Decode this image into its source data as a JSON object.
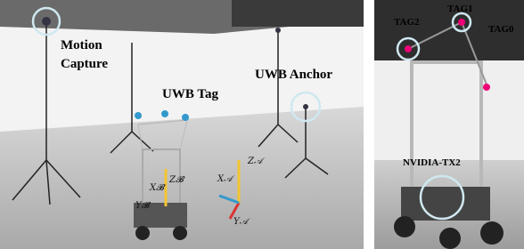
{
  "left_panel": {
    "motion_capture": [
      "Motion",
      "Capture"
    ],
    "uwb_tag": "UWB Tag",
    "uwb_anchor": "UWB Anchor",
    "body_frame": {
      "z": "Z𝓑",
      "x": "X𝓑",
      "y": "Y𝓑"
    },
    "world_frame": {
      "x": "X𝒜",
      "z": "Z𝒜",
      "y": "Y𝒜"
    }
  },
  "right_panel": {
    "tags": [
      "TAG2",
      "TAG1",
      "TAG0"
    ],
    "computer": "NVIDIA-TX2"
  }
}
